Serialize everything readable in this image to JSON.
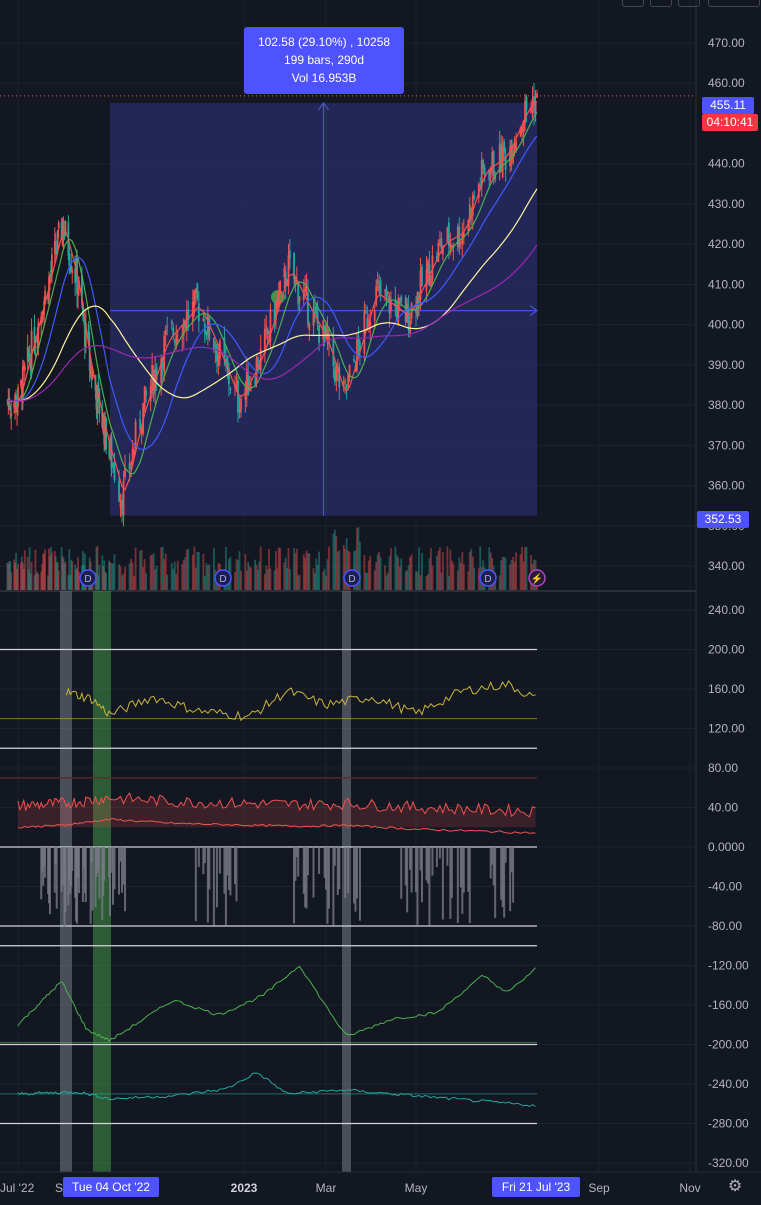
{
  "colors": {
    "background": "#131722",
    "grid": "#1e222d",
    "axis_text": "#b2b5be",
    "measure_fill": "#2a2e69",
    "measure_border": "#4b4fe0",
    "measure_label_bg": "#4f52ff",
    "up": "#ef5350",
    "down": "#26a69a",
    "ma_red": "#ef5350",
    "ma_green": "#4caf50",
    "ma_blue": "#3d5afe",
    "ma_yellow": "#fff59d",
    "ma_purple": "#9c27b0",
    "osc_yellow": "#c8b43a",
    "osc_red": "#ef5350",
    "osc_green": "#4caf50",
    "osc_teal": "#26a69a",
    "histogram": "#787b86",
    "price_tag": "#4f52ff",
    "countdown_tag": "#f23645"
  },
  "measure": {
    "line1": "102.58 (29.10%) , 10258",
    "line2": "199 bars, 290d",
    "line3": "Vol 16.953B"
  },
  "price_labels": {
    "last": "455.11",
    "countdown": "04:10:41",
    "measure_low": "352.53"
  },
  "x_labels": [
    {
      "text": "Jul '22"
    },
    {
      "text": "S"
    },
    {
      "text": "2023"
    },
    {
      "text": "Mar"
    },
    {
      "text": "May"
    },
    {
      "text": "Sep"
    },
    {
      "text": "Nov"
    }
  ],
  "x_highlight_left": "Tue 04 Oct '22",
  "x_highlight_right": "Fri 21 Jul '23",
  "dividend_marker": "D",
  "earnings_marker": "⚡",
  "chart_data": {
    "type": "line",
    "price_axis": {
      "ticks": [
        "470.00",
        "460.00",
        "440.00",
        "430.00",
        "420.00",
        "410.00",
        "400.00",
        "390.00",
        "380.00",
        "370.00",
        "360.00",
        "350.00",
        "340.00"
      ],
      "ylim": [
        338,
        474
      ]
    },
    "indicator_axis": {
      "ticks": [
        "240.00",
        "200.00",
        "160.00",
        "120.00",
        "80.00",
        "40.00",
        "0.0000",
        "-40.00",
        "-80.00",
        "-120.00",
        "-160.00",
        "-200.00",
        "-240.00",
        "-280.00",
        "-320.00"
      ],
      "ylim": [
        -326,
        252
      ]
    },
    "close_series": {
      "name": "",
      "x": [
        "2022-07-01",
        "2022-08-01",
        "2022-08-16",
        "2022-09-01",
        "2022-09-13",
        "2022-10-04",
        "2022-10-12",
        "2022-10-25",
        "2022-11-10",
        "2022-12-01",
        "2022-12-13",
        "2022-12-28",
        "2023-01-13",
        "2023-02-02",
        "2023-02-15",
        "2023-03-01",
        "2023-03-13",
        "2023-04-03",
        "2023-04-25",
        "2023-05-18",
        "2023-06-01",
        "2023-06-15",
        "2023-06-30",
        "2023-07-13",
        "2023-07-19",
        "2023-07-21"
      ],
      "values": [
        381,
        410,
        425,
        410,
        390,
        368,
        357,
        378,
        396,
        405,
        395,
        381,
        392,
        414,
        405,
        396,
        382,
        408,
        402,
        420,
        423,
        438,
        442,
        453,
        456,
        455
      ]
    },
    "measure_range": {
      "from_date": "2022-10-04",
      "to_date": "2023-07-21",
      "low": 352.53,
      "high": 455.11
    },
    "indicators": [
      {
        "name": "",
        "x": [
          "2022-08-20",
          "2022-09-15",
          "2022-10-04",
          "2022-11-01",
          "2022-12-01",
          "2023-01-05",
          "2023-02-01",
          "2023-03-01",
          "2023-04-01",
          "2023-05-01",
          "2023-06-01",
          "2023-07-01",
          "2023-07-21"
        ],
        "values": [
          157,
          150,
          134,
          152,
          138,
          132,
          158,
          144,
          152,
          135,
          158,
          165,
          150
        ]
      },
      {
        "name": "",
        "x": [
          "2022-07-01",
          "2022-08-15",
          "2022-10-04",
          "2022-11-15",
          "2023-01-05",
          "2023-02-15",
          "2023-03-15",
          "2023-05-01",
          "2023-06-15",
          "2023-07-21"
        ],
        "values": [
          20,
          22,
          28,
          24,
          22,
          21,
          22,
          18,
          16,
          14
        ]
      },
      {
        "name": "",
        "x": [
          "2022-07-01",
          "2022-08-15",
          "2022-09-10",
          "2022-10-04",
          "2022-11-15",
          "2022-12-15",
          "2023-01-15",
          "2023-02-10",
          "2023-03-15",
          "2023-04-15",
          "2023-05-15",
          "2023-06-15",
          "2023-07-01",
          "2023-07-21"
        ],
        "values": [
          -180,
          -136,
          -185,
          -196,
          -155,
          -170,
          -150,
          -120,
          -192,
          -174,
          -168,
          -130,
          -148,
          -122
        ]
      },
      {
        "name": "",
        "x": [
          "2022-07-01",
          "2022-09-01",
          "2022-10-04",
          "2022-11-15",
          "2022-12-20",
          "2023-01-10",
          "2023-02-01",
          "2023-03-13",
          "2023-05-01",
          "2023-07-21"
        ],
        "values": [
          -250,
          -248,
          -255,
          -252,
          -245,
          -228,
          -250,
          -246,
          -252,
          -262
        ]
      }
    ],
    "reference_levels": [
      200,
      100,
      70,
      0,
      -80,
      -100,
      -200,
      -280
    ],
    "grid": true
  }
}
